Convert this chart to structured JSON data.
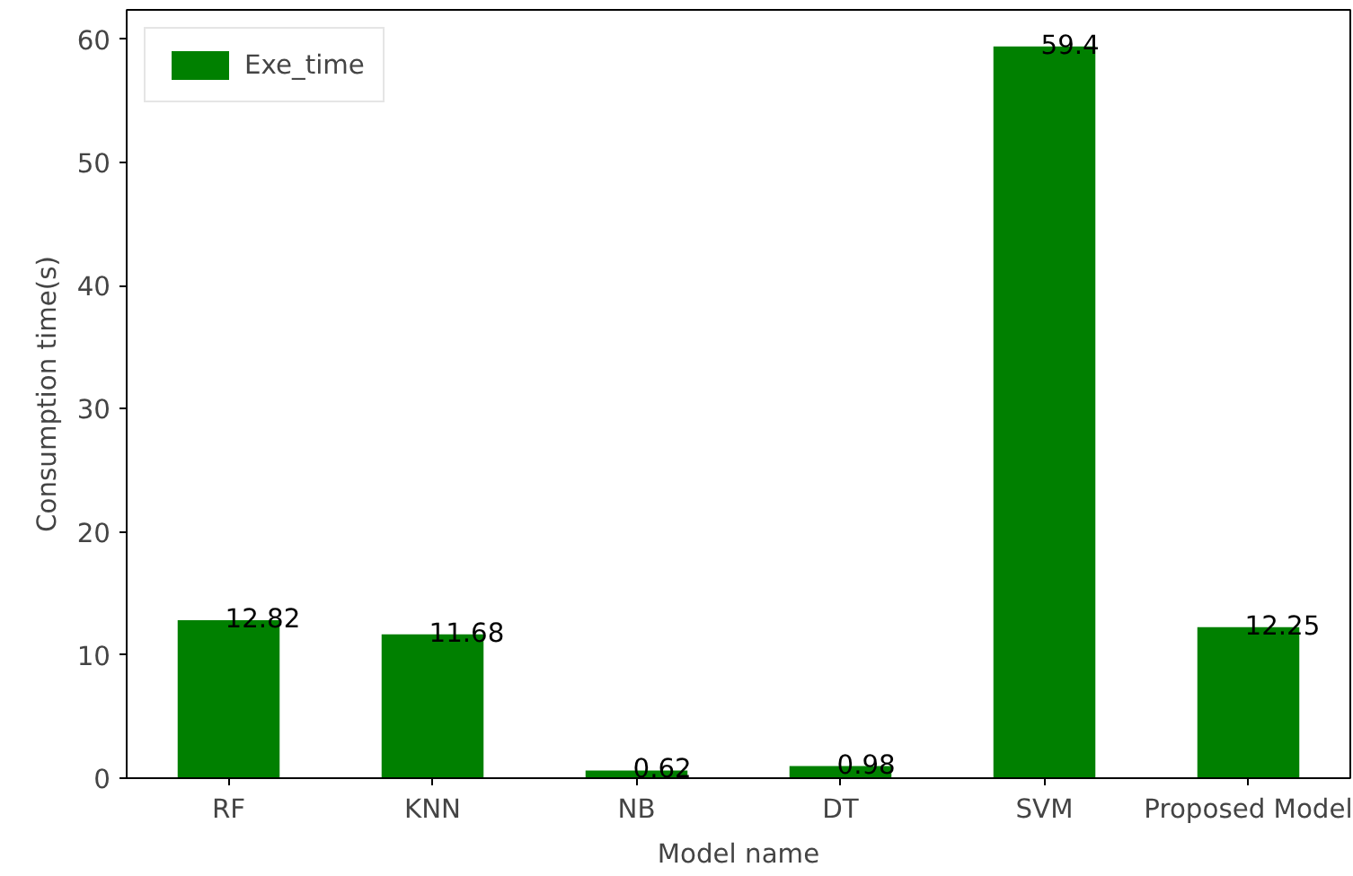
{
  "chart_data": {
    "type": "bar",
    "xlabel": "Model name",
    "ylabel": "Consumption time(s)",
    "categories": [
      "RF",
      "KNN",
      "NB",
      "DT",
      "SVM",
      "Proposed Model"
    ],
    "series": [
      {
        "name": "Exe_time",
        "color": "#008000",
        "values": [
          12.82,
          11.68,
          0.62,
          0.98,
          59.4,
          12.25
        ]
      }
    ],
    "ylim": [
      0,
      62.37
    ],
    "yticks": [
      0,
      10,
      20,
      30,
      40,
      50,
      60
    ],
    "grid": false,
    "legend": "top left",
    "data_labels": true
  }
}
